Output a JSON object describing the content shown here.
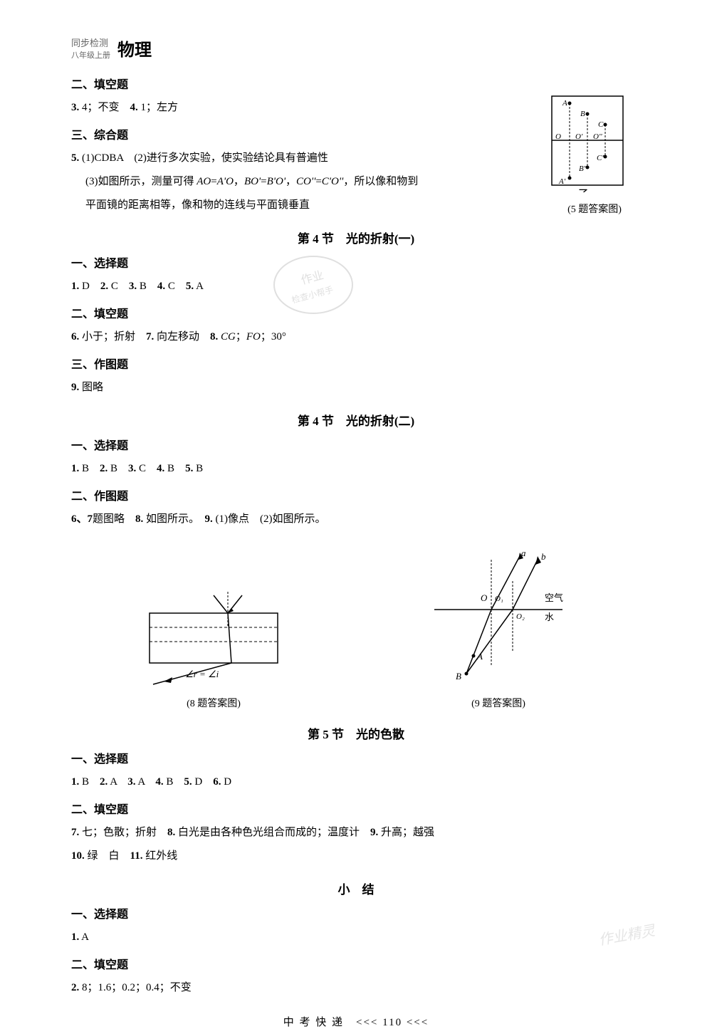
{
  "header": {
    "line1": "同步检测",
    "line2": "八年级上册",
    "subject": "物理"
  },
  "sections": [
    {
      "heading": "二、填空题",
      "lines": [
        "<b>3.</b> 4；不变　<b>4.</b> 1；左方"
      ]
    },
    {
      "heading": "三、综合题",
      "lines": [
        "<b>5.</b> (1)CDBA　(2)进行多次实验，使实验结论具有普遍性",
        "(3)如图所示，测量可得 <i>AO</i>=<i>A'O</i>，<i>BO'</i>=<i>B'O'</i>，<i>CO''</i>=<i>C'O''</i>，所以像和物到",
        "平面镜的距离相等，像和物的连线与平面镜垂直"
      ],
      "indentFrom": 1
    }
  ],
  "diagram5_caption": "(5 题答案图)",
  "diagram5_label_zi": "乙",
  "title_4_1": "第 4 节　光的折射(一)",
  "sec_4_1": {
    "h1": "一、选择题",
    "l1": "<b>1.</b> D　<b>2.</b> C　<b>3.</b> B　<b>4.</b> C　<b>5.</b> A",
    "h2": "二、填空题",
    "l2": "<b>6.</b> 小于；折射　<b>7.</b> 向左移动　<b>8.</b> <i>CG</i>；<i>FO</i>；30°",
    "h3": "三、作图题",
    "l3": "<b>9.</b> 图略"
  },
  "title_4_2": "第 4 节　光的折射(二)",
  "sec_4_2": {
    "h1": "一、选择题",
    "l1": "<b>1.</b> B　<b>2.</b> B　<b>3.</b> C　<b>4.</b> B　<b>5.</b> B",
    "h2": "二、作图题",
    "l2": "<b>6、7</b>题图略　<b>8.</b> 如图所示。　<b>9.</b> (1)像点　(2)如图所示。"
  },
  "diagram8": {
    "caption": "(8 题答案图)",
    "formula": "∠r = ∠i"
  },
  "diagram9": {
    "caption": "(9 题答案图)",
    "label_a": "a",
    "label_b": "b",
    "label_O": "O",
    "label_O1": "O₁",
    "label_O2": "O₂",
    "label_air": "空气",
    "label_water": "水",
    "label_A": "A",
    "label_B": "B"
  },
  "title_5": "第 5 节　光的色散",
  "sec_5": {
    "h1": "一、选择题",
    "l1": "<b>1.</b> B　<b>2.</b> A　<b>3.</b> A　<b>4.</b> B　<b>5.</b> D　<b>6.</b> D",
    "h2": "二、填空题",
    "l2": "<b>7.</b> 七；色散；折射　<b>8.</b> 白光是由各种色光组合而成的；温度计　<b>9.</b> 升高；越强",
    "l3": "<b>10.</b> 绿　白　<b>11.</b> 红外线"
  },
  "title_summary": "小　结",
  "sec_summary": {
    "h1": "一、选择题",
    "l1": "<b>1.</b> A",
    "h2": "二、填空题",
    "l2": "<b>2.</b> 8；1.6；0.2；0.4；不变"
  },
  "footer": "中 考 快 递　<<< 110 <<<",
  "watermark_br": "作业精灵",
  "watermark_center": "作业"
}
